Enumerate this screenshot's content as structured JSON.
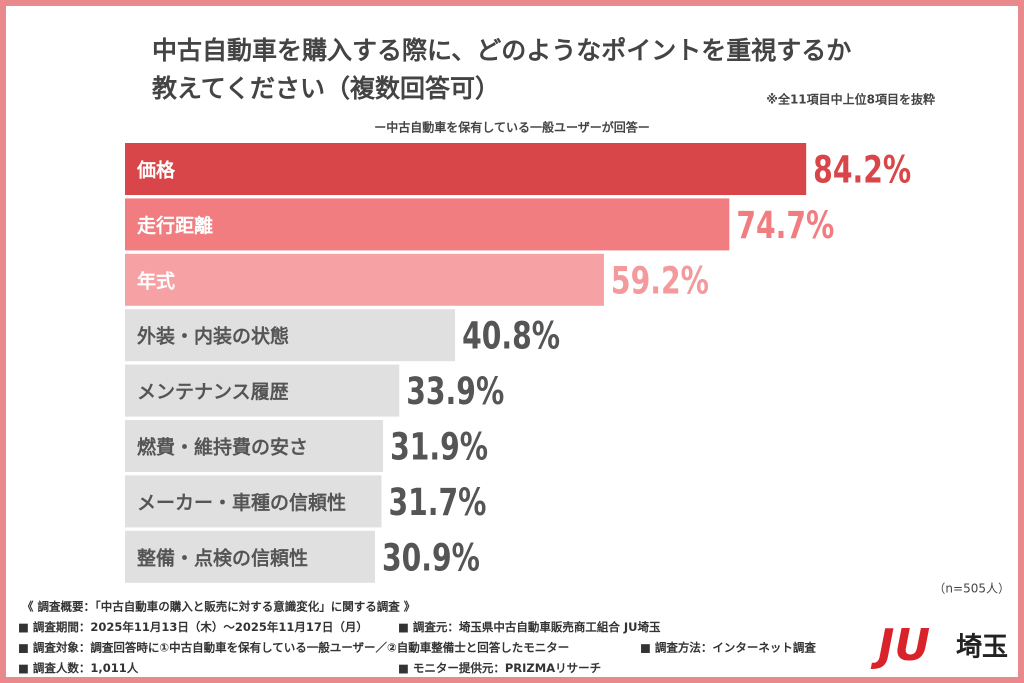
{
  "chart_data": {
    "type": "bar",
    "orientation": "horizontal",
    "title": [
      "中古自動車を購入する際に、どのようなポイントを重視するか",
      "教えてください（複数回答可）"
    ],
    "note": "※全11項目中上位8項目を抜粋",
    "subtitle": "ー中古自動車を保有している一般ユーザーが回答ー",
    "categories": [
      "価格",
      "走行距離",
      "年式",
      "外装・内装の状態",
      "メンテナンス履歴",
      "燃費・維持費の安さ",
      "メーカー・車種の信頼性",
      "整備・点検の信頼性"
    ],
    "values": [
      84.2,
      74.7,
      59.2,
      40.8,
      33.9,
      31.9,
      31.7,
      30.9
    ],
    "value_labels": [
      "84.2%",
      "74.7%",
      "59.2%",
      "40.8%",
      "33.9%",
      "31.9%",
      "31.7%",
      "30.9%"
    ],
    "colors": [
      "#d9464a",
      "#f17d80",
      "#f6a2a4",
      "#e0e0e0",
      "#e0e0e0",
      "#e0e0e0",
      "#e0e0e0",
      "#e0e0e0"
    ],
    "category_label_colors": [
      "#ffffff",
      "#ffffff",
      "#ffffff",
      "#555555",
      "#555555",
      "#555555",
      "#555555",
      "#555555"
    ],
    "value_label_colors": [
      "#d9464a",
      "#f17d80",
      "#f49a9c",
      "#555555",
      "#555555",
      "#555555",
      "#555555",
      "#555555"
    ],
    "xlim": [
      0,
      100
    ],
    "sample_size": "（n=505人）"
  },
  "footer": [
    [
      "《 調査概要：「中古自動車の購入と販売に対する意識変化」に関する調査 》"
    ],
    [
      "■ 調査期間：2025年11月13日（木）～2025年11月17日（月）",
      "■ 調査元：埼玉県中古自動車販売商工組合 JU埼玉"
    ],
    [
      "■ 調査対象：調査回答時に①中古自動車を保有している一般ユーザー／②自動車整備士と回答したモニター",
      "■ 調査方法：インターネット調査"
    ],
    [
      "■ 調査人数：1,011人",
      "■ モニター提供元：PRIZMAリサーチ"
    ]
  ],
  "logo": {
    "mark": "JU",
    "text": "埼玉"
  }
}
